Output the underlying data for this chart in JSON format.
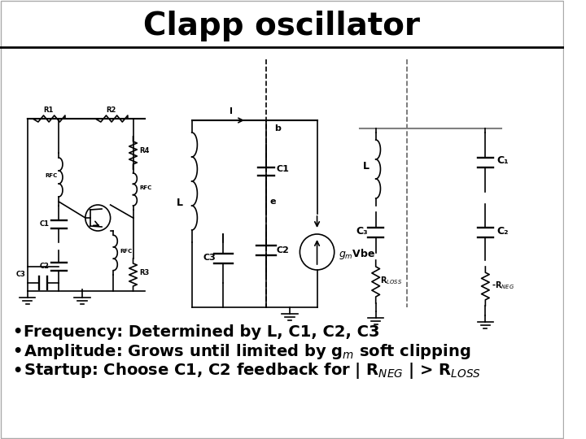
{
  "title": "Clapp oscillator",
  "title_fontsize": 28,
  "title_fontweight": "bold",
  "bg_color": "#ffffff",
  "bullet1": "Frequency: Determined by L, C1, C2, C3",
  "bullet2": "Amplitude: Grows until limited by g$_{m}$ soft clipping",
  "bullet3": "Startup: Choose C1, C2 feedback for | R$_{NEG}$ | > R$_{LOSS}$",
  "text_fontsize": 14,
  "text_fontweight": "bold"
}
